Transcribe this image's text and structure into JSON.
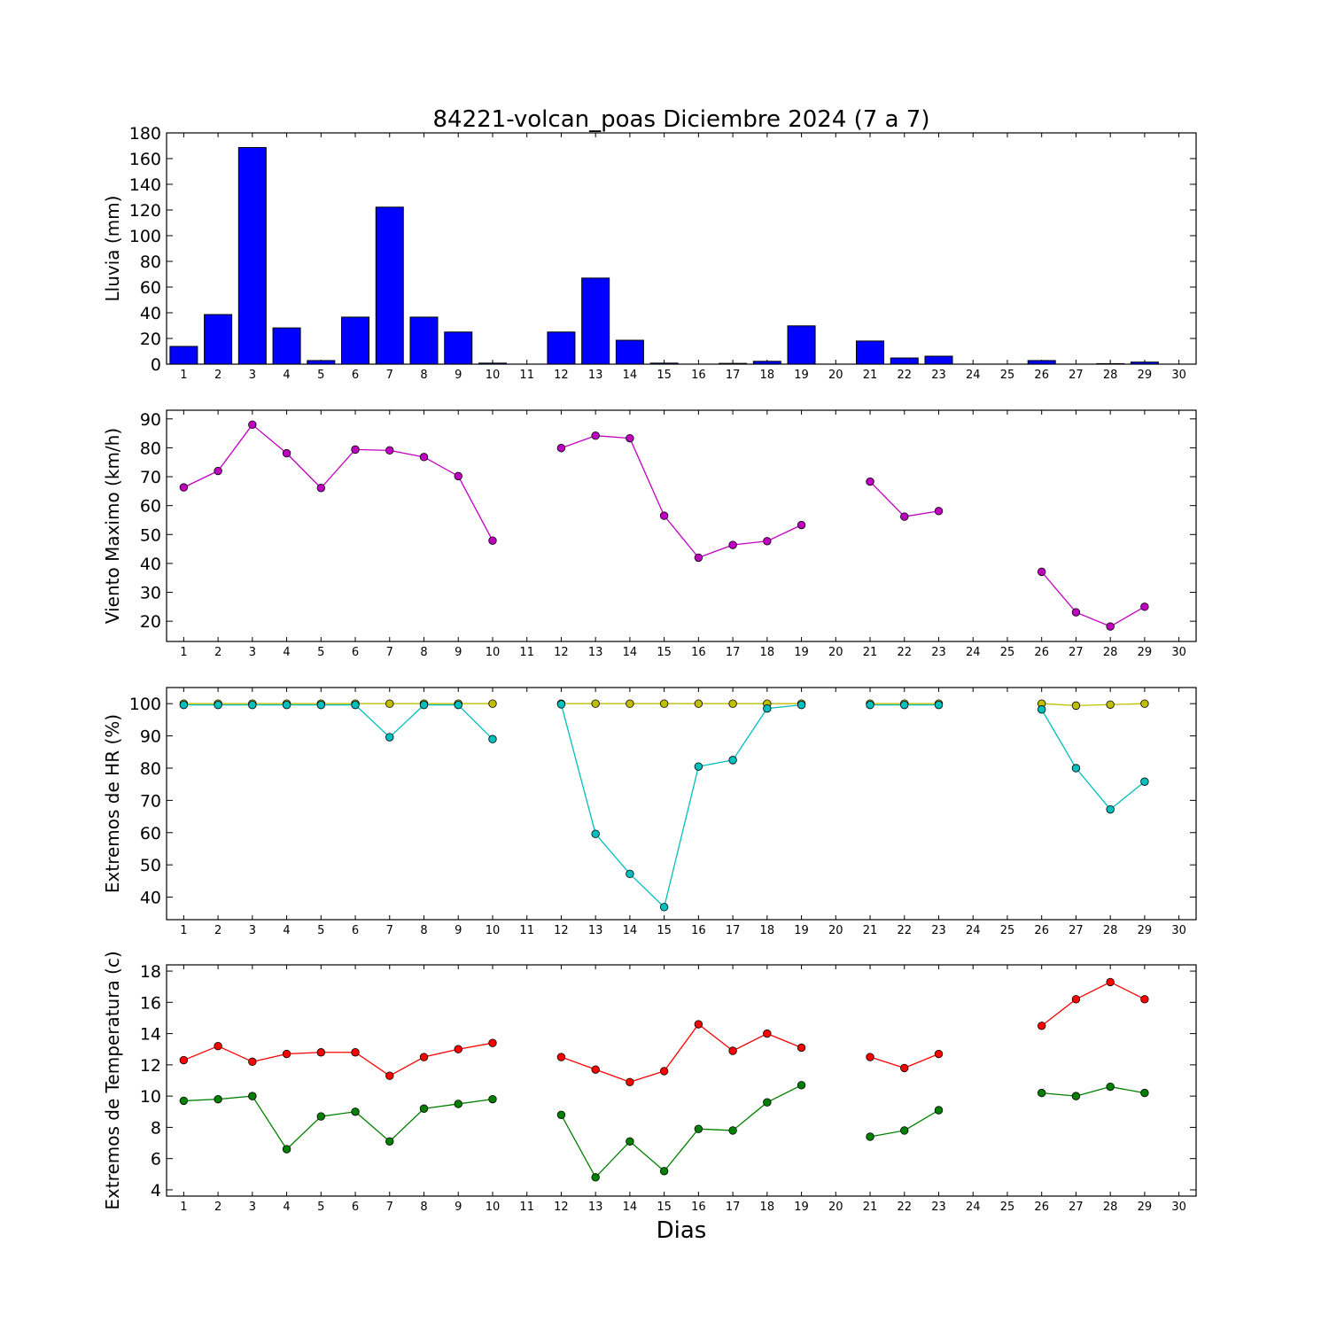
{
  "title": "84221-volcan_poas Diciembre 2024  (7 a 7)",
  "xlabel": "Dias",
  "chart_data": [
    {
      "type": "bar",
      "ylabel": "Lluvia (mm)",
      "ylim": [
        0,
        180
      ],
      "yticks": [
        0,
        20,
        40,
        60,
        80,
        100,
        120,
        140,
        160,
        180
      ],
      "x": [
        1,
        2,
        3,
        4,
        5,
        6,
        7,
        8,
        9,
        10,
        11,
        12,
        13,
        14,
        15,
        16,
        17,
        18,
        19,
        20,
        21,
        22,
        23,
        24,
        25,
        26,
        27,
        28,
        29,
        30
      ],
      "xlim": [
        0.5,
        30.5
      ],
      "xticks": [
        1,
        2,
        3,
        4,
        5,
        6,
        7,
        8,
        9,
        10,
        11,
        12,
        13,
        14,
        15,
        16,
        17,
        18,
        19,
        20,
        21,
        22,
        23,
        24,
        25,
        26,
        27,
        28,
        29,
        30
      ],
      "series": [
        {
          "color": "#0000ff",
          "values": [
            13.8,
            38.6,
            168.6,
            28.2,
            2.8,
            36.6,
            122.2,
            36.6,
            25.0,
            0.8,
            null,
            25.0,
            67.0,
            18.6,
            0.8,
            null,
            0.6,
            2.2,
            29.8,
            null,
            18.0,
            4.8,
            6.2,
            null,
            null,
            2.8,
            null,
            0.4,
            1.6,
            null
          ]
        }
      ]
    },
    {
      "type": "line",
      "ylabel": "Viento Maximo (km/h)",
      "ylim": [
        13,
        93
      ],
      "yticks": [
        20,
        30,
        40,
        50,
        60,
        70,
        80,
        90
      ],
      "xlim": [
        0.5,
        30.5
      ],
      "xticks": [
        1,
        2,
        3,
        4,
        5,
        6,
        7,
        8,
        9,
        10,
        11,
        12,
        13,
        14,
        15,
        16,
        17,
        18,
        19,
        20,
        21,
        22,
        23,
        24,
        25,
        26,
        27,
        28,
        29,
        30
      ],
      "series": [
        {
          "color": "#bf00bf",
          "values": [
            66.3,
            72.0,
            88.0,
            78.1,
            66.1,
            79.4,
            79.1,
            76.8,
            70.2,
            47.9,
            null,
            79.9,
            84.2,
            83.3,
            56.5,
            42.0,
            46.4,
            47.7,
            53.3,
            null,
            68.3,
            56.2,
            58.1,
            null,
            null,
            37.1,
            23.1,
            18.2,
            25.0,
            null
          ]
        }
      ]
    },
    {
      "type": "line",
      "ylabel": "Extremos de HR (%)",
      "ylim": [
        33,
        105
      ],
      "yticks": [
        40,
        50,
        60,
        70,
        80,
        90,
        100
      ],
      "xlim": [
        0.5,
        30.5
      ],
      "xticks": [
        1,
        2,
        3,
        4,
        5,
        6,
        7,
        8,
        9,
        10,
        11,
        12,
        13,
        14,
        15,
        16,
        17,
        18,
        19,
        20,
        21,
        22,
        23,
        24,
        25,
        26,
        27,
        28,
        29,
        30
      ],
      "series": [
        {
          "color": "#bfbf00",
          "values": [
            100,
            100,
            100,
            100,
            100,
            100,
            100,
            100,
            100,
            100,
            null,
            100,
            100,
            100,
            100,
            100,
            100,
            100,
            100,
            null,
            100,
            100,
            100,
            null,
            null,
            100,
            99.4,
            99.7,
            100,
            null
          ]
        },
        {
          "color": "#00bfbf",
          "values": [
            99.6,
            99.6,
            99.6,
            99.6,
            99.6,
            99.6,
            89.6,
            99.6,
            99.6,
            89.0,
            null,
            99.8,
            59.6,
            47.2,
            36.9,
            80.5,
            82.5,
            98.5,
            99.6,
            null,
            99.6,
            99.6,
            99.6,
            null,
            null,
            98.2,
            80.0,
            67.2,
            75.8,
            null
          ]
        }
      ]
    },
    {
      "type": "line",
      "ylabel": "Extremos de Temperatura (c)",
      "ylim": [
        3.6,
        18.4
      ],
      "yticks": [
        4,
        6,
        8,
        10,
        12,
        14,
        16,
        18
      ],
      "xlim": [
        0.5,
        30.5
      ],
      "xticks": [
        1,
        2,
        3,
        4,
        5,
        6,
        7,
        8,
        9,
        10,
        11,
        12,
        13,
        14,
        15,
        16,
        17,
        18,
        19,
        20,
        21,
        22,
        23,
        24,
        25,
        26,
        27,
        28,
        29,
        30
      ],
      "series": [
        {
          "color": "#ff0000",
          "values": [
            12.3,
            13.2,
            12.2,
            12.7,
            12.8,
            12.8,
            11.3,
            12.5,
            13.0,
            13.4,
            null,
            12.5,
            11.7,
            10.9,
            11.6,
            14.6,
            12.9,
            14.0,
            13.1,
            null,
            12.5,
            11.8,
            12.7,
            null,
            null,
            14.5,
            16.2,
            17.3,
            16.2,
            null
          ]
        },
        {
          "color": "#008000",
          "values": [
            9.7,
            9.8,
            10.0,
            6.6,
            8.7,
            9.0,
            7.1,
            9.2,
            9.5,
            9.8,
            null,
            8.8,
            4.8,
            7.1,
            5.2,
            7.9,
            7.8,
            9.6,
            10.7,
            null,
            7.4,
            7.8,
            9.1,
            null,
            null,
            10.2,
            10.0,
            10.6,
            10.2,
            null
          ]
        }
      ]
    }
  ]
}
